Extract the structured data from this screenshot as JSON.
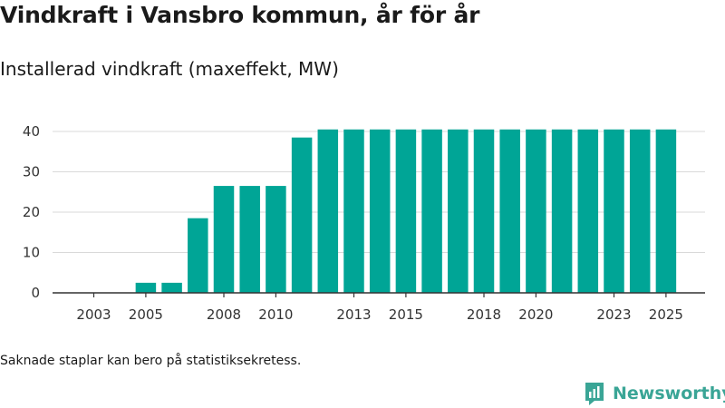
{
  "title": "Vindkraft i Vansbro kommun, år för år",
  "subtitle": "Installerad vindkraft (maxeffekt, MW)",
  "footnote": "Saknade staplar kan bero på statistiksekretess.",
  "brand": {
    "name": "Newsworthy",
    "icon": "newsworthy-logo-icon"
  },
  "colors": {
    "bar": "#00a596",
    "grid": "#d9d9d9",
    "axis": "#333333"
  },
  "chart_data": {
    "type": "bar",
    "categories": [
      "2003",
      "2004",
      "2005",
      "2006",
      "2007",
      "2008",
      "2009",
      "2010",
      "2011",
      "2012",
      "2013",
      "2014",
      "2015",
      "2016",
      "2017",
      "2018",
      "2019",
      "2020",
      "2021",
      "2022",
      "2023",
      "2024",
      "2025"
    ],
    "values": [
      0,
      0,
      2.5,
      2.5,
      18.5,
      26.5,
      26.5,
      26.5,
      38.5,
      40.5,
      40.5,
      40.5,
      40.5,
      40.5,
      40.5,
      40.5,
      40.5,
      40.5,
      40.5,
      40.5,
      40.5,
      40.5,
      40.5
    ],
    "x_tick_labels": [
      "2003",
      "2005",
      "2008",
      "2010",
      "2013",
      "2015",
      "2018",
      "2020",
      "2023",
      "2025"
    ],
    "y_ticks": [
      0,
      10,
      20,
      30,
      40
    ],
    "ylim": [
      0,
      45
    ],
    "title": "Vindkraft i Vansbro kommun, år för år",
    "ylabel": "Installerad vindkraft (maxeffekt, MW)",
    "xlabel": ""
  }
}
